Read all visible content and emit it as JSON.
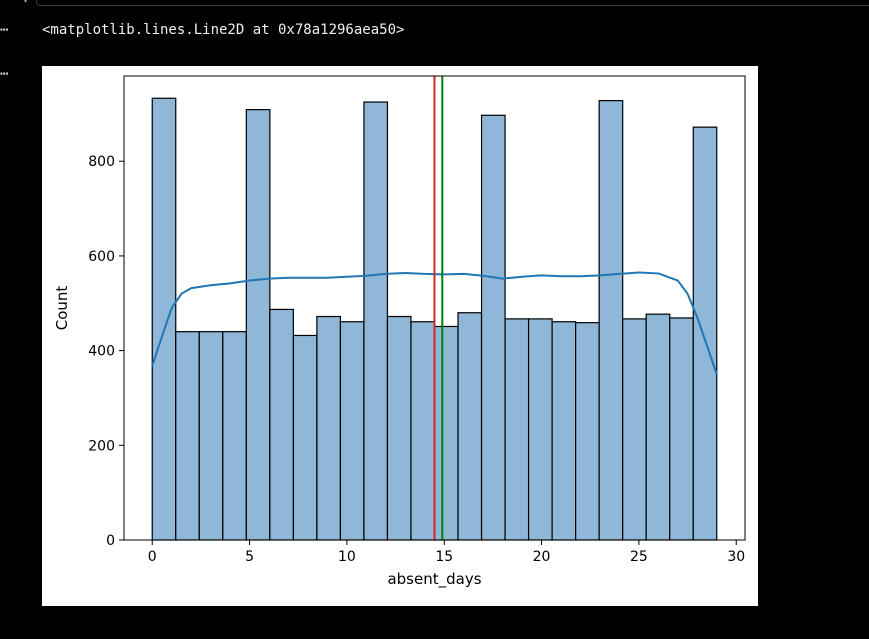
{
  "cell": {
    "gutter_marks": [
      "⋯",
      "⋯"
    ],
    "output_text": "<matplotlib.lines.Line2D at 0x78a1296aea50>"
  },
  "chart_data": {
    "type": "bar",
    "xlabel": "absent_days",
    "ylabel": "Count",
    "xlim": [
      -1.45,
      30.45
    ],
    "ylim": [
      0,
      980
    ],
    "xticks": [
      0,
      5,
      10,
      15,
      20,
      25,
      30
    ],
    "yticks": [
      0,
      200,
      400,
      600,
      800
    ],
    "bin_edges": [
      0,
      1.208,
      2.417,
      3.625,
      4.833,
      6.042,
      7.25,
      8.458,
      9.667,
      10.875,
      12.083,
      13.292,
      14.5,
      15.708,
      16.917,
      18.125,
      19.333,
      20.542,
      21.75,
      22.958,
      24.167,
      25.375,
      26.583,
      27.792,
      29
    ],
    "values": [
      933,
      440,
      440,
      440,
      909,
      487,
      432,
      472,
      461,
      925,
      472,
      461,
      451,
      480,
      897,
      467,
      467,
      461,
      459,
      928,
      467,
      477,
      469,
      872
    ],
    "kde": {
      "x": [
        0,
        0.5,
        1,
        1.5,
        2,
        3,
        4,
        5,
        6,
        7,
        8,
        9,
        10,
        11,
        12,
        13,
        14,
        15,
        16,
        17,
        18,
        19,
        20,
        21,
        22,
        23,
        24,
        25,
        26,
        27,
        27.5,
        28,
        28.5,
        29
      ],
      "y": [
        368,
        430,
        490,
        520,
        532,
        538,
        542,
        548,
        552,
        554,
        554,
        554,
        556,
        558,
        562,
        564,
        562,
        561,
        562,
        558,
        552,
        556,
        559,
        557,
        557,
        559,
        562,
        565,
        563,
        548,
        520,
        470,
        410,
        350
      ]
    },
    "vlines": [
      {
        "x": 14.5,
        "color": "#d62728"
      },
      {
        "x": 14.9,
        "color": "#008000"
      }
    ],
    "colors": {
      "bar_fill": "#8fb7d8",
      "bar_edge": "#000000",
      "kde": "#1f77b4"
    }
  }
}
